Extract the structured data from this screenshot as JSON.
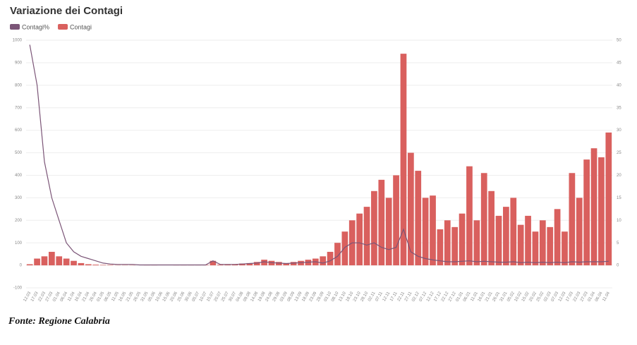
{
  "chart_data": {
    "type": "bar",
    "title": "Variazione dei Contagi",
    "source": "Fonte: Regione Calabria",
    "categories": [
      "12.03",
      "17.03",
      "22.03",
      "27.03",
      "01.04",
      "06.04",
      "11.04",
      "16.04",
      "21.04",
      "26.04",
      "01.05",
      "06.05",
      "11.05",
      "16.05",
      "21.05",
      "26.05",
      "31.05",
      "05.06",
      "10.06",
      "15.06",
      "20.06",
      "25.06",
      "30.06",
      "05.07",
      "10.07",
      "15.07",
      "20.07",
      "25.07",
      "30.07",
      "04.08",
      "09.08",
      "14.08",
      "19.08",
      "24.08",
      "29.08",
      "03.09",
      "08.09",
      "13.09",
      "18.09",
      "23.09",
      "28.09",
      "03.10",
      "08.10",
      "13.10",
      "18.10",
      "23.10",
      "28.10",
      "02.11",
      "07.11",
      "12.11",
      "17.11",
      "22.11",
      "27.11",
      "02.12",
      "07.12",
      "12.12",
      "17.12",
      "22.12",
      "27.12",
      "01.01",
      "06.01",
      "11.01",
      "16.01",
      "21.01",
      "26.01",
      "31.01",
      "05.02",
      "10.02",
      "15.02",
      "20.02",
      "25.02",
      "02.03",
      "07.03",
      "12.03",
      "17.03",
      "22.03",
      "27.03",
      "01.04",
      "06.04",
      "11.04"
    ],
    "series": [
      {
        "name": "Contagi%",
        "type": "line",
        "axis": "y2",
        "color": "#7b5577",
        "values": [
          49,
          40,
          23,
          15,
          10,
          5,
          3,
          2,
          1.5,
          1,
          0.5,
          0.3,
          0.2,
          0.2,
          0.2,
          0.1,
          0.1,
          0.1,
          0.1,
          0.1,
          0.1,
          0.1,
          0.1,
          0.1,
          0.1,
          1,
          0.2,
          0.2,
          0.2,
          0.3,
          0.4,
          0.5,
          0.8,
          0.6,
          0.5,
          0.4,
          0.5,
          0.6,
          0.7,
          0.8,
          0.5,
          1,
          2,
          4,
          5,
          5,
          4.5,
          5,
          4,
          3.5,
          4,
          8,
          3,
          2,
          1.5,
          1.2,
          1,
          0.8,
          0.8,
          0.9,
          1,
          0.8,
          0.9,
          0.8,
          0.7,
          0.7,
          0.8,
          0.6,
          0.7,
          0.6,
          0.7,
          0.6,
          0.7,
          0.6,
          0.8,
          0.7,
          0.8,
          0.8,
          0.8,
          0.9
        ]
      },
      {
        "name": "Contagi",
        "color": "#d9605e",
        "values": [
          5,
          30,
          40,
          60,
          40,
          30,
          20,
          10,
          5,
          3,
          2,
          2,
          1,
          1,
          1,
          0,
          1,
          1,
          0,
          0,
          1,
          1,
          2,
          1,
          2,
          20,
          3,
          3,
          5,
          8,
          10,
          15,
          25,
          20,
          15,
          10,
          15,
          20,
          25,
          30,
          40,
          60,
          100,
          150,
          200,
          230,
          260,
          330,
          380,
          300,
          400,
          940,
          500,
          420,
          300,
          310,
          160,
          200,
          170,
          230,
          440,
          200,
          410,
          330,
          220,
          260,
          300,
          180,
          220,
          150,
          200,
          170,
          250,
          150,
          410,
          300,
          470,
          520,
          480,
          590
        ]
      }
    ],
    "ylim": [
      -100,
      1000
    ],
    "yticks": [
      -100,
      0,
      100,
      200,
      300,
      400,
      500,
      600,
      700,
      800,
      900,
      1000
    ],
    "y2lim": [
      -5,
      50
    ],
    "y2ticks": [
      0,
      5,
      10,
      15,
      20,
      25,
      30,
      35,
      40,
      45,
      50
    ],
    "grid": true
  }
}
